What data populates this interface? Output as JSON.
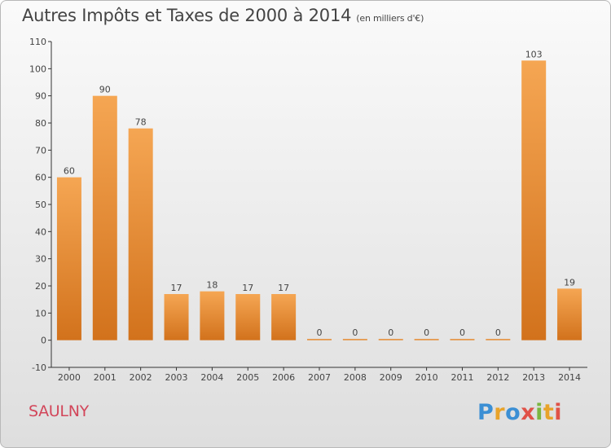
{
  "chart_data": {
    "type": "bar",
    "title": "Autres Impôts et Taxes de 2000 à 2014",
    "subtitle": "(en milliers d'€)",
    "categories": [
      "2000",
      "2001",
      "2002",
      "2003",
      "2004",
      "2005",
      "2006",
      "2007",
      "2008",
      "2009",
      "2010",
      "2011",
      "2012",
      "2013",
      "2014"
    ],
    "values": [
      60,
      90,
      78,
      17,
      18,
      17,
      17,
      0,
      0,
      0,
      0,
      0,
      0,
      103,
      19
    ],
    "data_labels": [
      "60",
      "90",
      "78",
      "17",
      "18",
      "17",
      "17",
      "0",
      "0",
      "0",
      "0",
      "0",
      "0",
      "103",
      "19"
    ],
    "ylim": [
      -10,
      110
    ],
    "yticks": [
      -10,
      0,
      10,
      20,
      30,
      40,
      50,
      60,
      70,
      80,
      90,
      100,
      110
    ],
    "grid": false,
    "bar_color": "#e58a30",
    "xlabel": "",
    "ylabel": ""
  },
  "town": "SAULNY",
  "logo": {
    "text": "Proxiti",
    "colors": [
      "#3b8fd4",
      "#e8a32a",
      "#e05248",
      "#7bb640"
    ]
  }
}
